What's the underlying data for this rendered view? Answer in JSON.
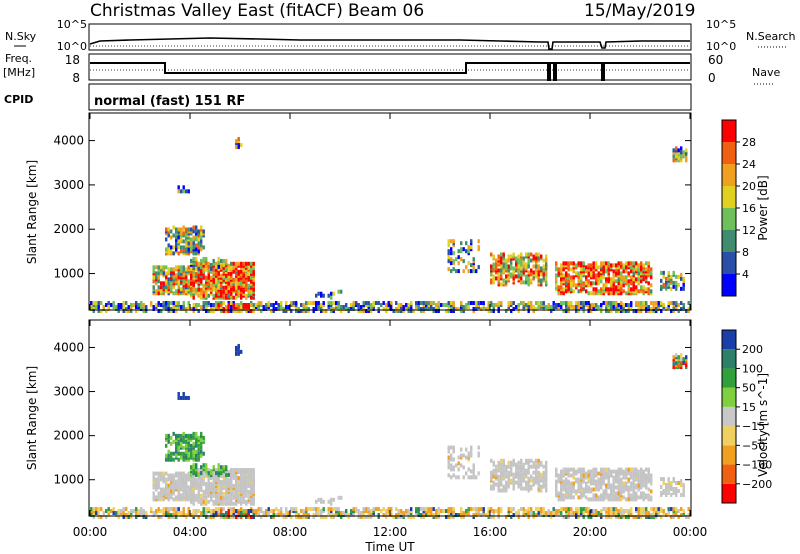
{
  "header": {
    "site": "Christmas Valley East (fitACF)",
    "beam": "Beam 06",
    "date": "15/May/2019"
  },
  "strip": {
    "nsky_label": "N.Sky",
    "nsky_ticks": [
      "10^5",
      "10^0"
    ],
    "nsearch_label": "N.Search",
    "nsearch_ticks": [
      "10^5",
      "10^0"
    ],
    "freq_label": "Freq.",
    "freq_unit": "[MHz]",
    "freq_ticks": [
      "18",
      "8"
    ],
    "nave_label": "Nave",
    "nave_ticks": [
      "60",
      "0"
    ],
    "cpid_label": "CPID",
    "cpid_value": "normal (fast) 151 RF"
  },
  "chart_data": [
    {
      "type": "heatmap",
      "quantity": "power",
      "ylabel": "Slant Range [km]",
      "yticks": [
        1000,
        2000,
        3000,
        4000
      ],
      "ylim": [
        200,
        4600
      ],
      "colorbar_label": "Power [dB]",
      "colorbar_ticks": [
        4,
        8,
        12,
        16,
        20,
        24,
        28
      ],
      "colorbar_range": [
        0,
        32
      ],
      "colors": [
        "#0000ff",
        "#2a4fa8",
        "#3f8c6e",
        "#6fbf5a",
        "#e0d020",
        "#f0a020",
        "#f06010",
        "#ff0000"
      ]
    },
    {
      "type": "heatmap",
      "quantity": "velocity",
      "ylabel": "Slant Range [km]",
      "yticks": [
        1000,
        2000,
        3000,
        4000
      ],
      "ylim": [
        200,
        4600
      ],
      "colorbar_label": "Velocity [m s^-1]",
      "colorbar_ticks": [
        "200",
        "100",
        "50",
        "15",
        "−15",
        "−50",
        "−100",
        "−200"
      ],
      "colors": [
        "#1a3fa8",
        "#2e7f6a",
        "#2fa03a",
        "#7fd040",
        "#c8c8c8",
        "#f0d060",
        "#f0a020",
        "#f06010",
        "#ff0000"
      ],
      "ground_scatter_color": "#c4c4c4"
    }
  ],
  "time_axis": {
    "ticks": [
      "00:00",
      "04:00",
      "08:00",
      "12:00",
      "16:00",
      "20:00",
      "00:00"
    ],
    "label": "Time UT"
  }
}
